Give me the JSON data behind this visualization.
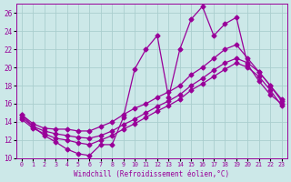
{
  "xlabel": "Windchill (Refroidissement éolien,°C)",
  "xlim": [
    -0.5,
    23.5
  ],
  "ylim": [
    10,
    27
  ],
  "yticks": [
    10,
    12,
    14,
    16,
    18,
    20,
    22,
    24,
    26
  ],
  "xticks": [
    0,
    1,
    2,
    3,
    4,
    5,
    6,
    7,
    8,
    9,
    10,
    11,
    12,
    13,
    14,
    15,
    16,
    17,
    18,
    19,
    20,
    21,
    22,
    23
  ],
  "bg_color": "#cce8e8",
  "grid_color": "#aacece",
  "line_color": "#990099",
  "line1_x": [
    0,
    1,
    2,
    3,
    4,
    5,
    6,
    7,
    8,
    9,
    10,
    11,
    12,
    13,
    14,
    15,
    16,
    17,
    18,
    19,
    20,
    21,
    22,
    23
  ],
  "line1_y": [
    14.8,
    13.5,
    12.5,
    11.8,
    11.0,
    10.5,
    10.3,
    11.5,
    11.5,
    14.5,
    19.8,
    22.0,
    23.5,
    16.7,
    22.0,
    25.3,
    26.7,
    23.5,
    24.8,
    25.5,
    20.3,
    18.5,
    17.0,
    16.0
  ],
  "line2_x": [
    0,
    1,
    2,
    3,
    4,
    5,
    6,
    7,
    8,
    9,
    10,
    11,
    12,
    13,
    14,
    15,
    16,
    17,
    18,
    19,
    20,
    21,
    22,
    23
  ],
  "line2_y": [
    14.8,
    13.8,
    13.3,
    13.2,
    13.2,
    13.0,
    13.0,
    13.5,
    14.0,
    14.8,
    15.5,
    16.0,
    16.7,
    17.3,
    18.0,
    19.2,
    20.0,
    21.0,
    22.0,
    22.5,
    21.0,
    19.5,
    18.0,
    16.5
  ],
  "line3_x": [
    0,
    1,
    2,
    3,
    4,
    5,
    6,
    7,
    8,
    9,
    10,
    11,
    12,
    13,
    14,
    15,
    16,
    17,
    18,
    19,
    20,
    21,
    22,
    23
  ],
  "line3_y": [
    14.5,
    13.5,
    13.0,
    12.7,
    12.5,
    12.3,
    12.2,
    12.5,
    13.0,
    13.7,
    14.3,
    15.0,
    15.7,
    16.3,
    17.0,
    18.0,
    18.8,
    19.7,
    20.5,
    21.0,
    20.5,
    19.5,
    18.0,
    16.3
  ],
  "line4_x": [
    0,
    1,
    2,
    3,
    4,
    5,
    6,
    7,
    8,
    9,
    10,
    11,
    12,
    13,
    14,
    15,
    16,
    17,
    18,
    19,
    20,
    21,
    22,
    23
  ],
  "line4_y": [
    14.3,
    13.3,
    12.7,
    12.2,
    12.0,
    11.7,
    11.5,
    12.0,
    12.5,
    13.2,
    13.8,
    14.5,
    15.2,
    15.8,
    16.5,
    17.5,
    18.2,
    19.0,
    19.8,
    20.5,
    20.0,
    19.0,
    17.5,
    15.8
  ],
  "marker": "D",
  "markersize": 2.5,
  "linewidth": 0.9
}
